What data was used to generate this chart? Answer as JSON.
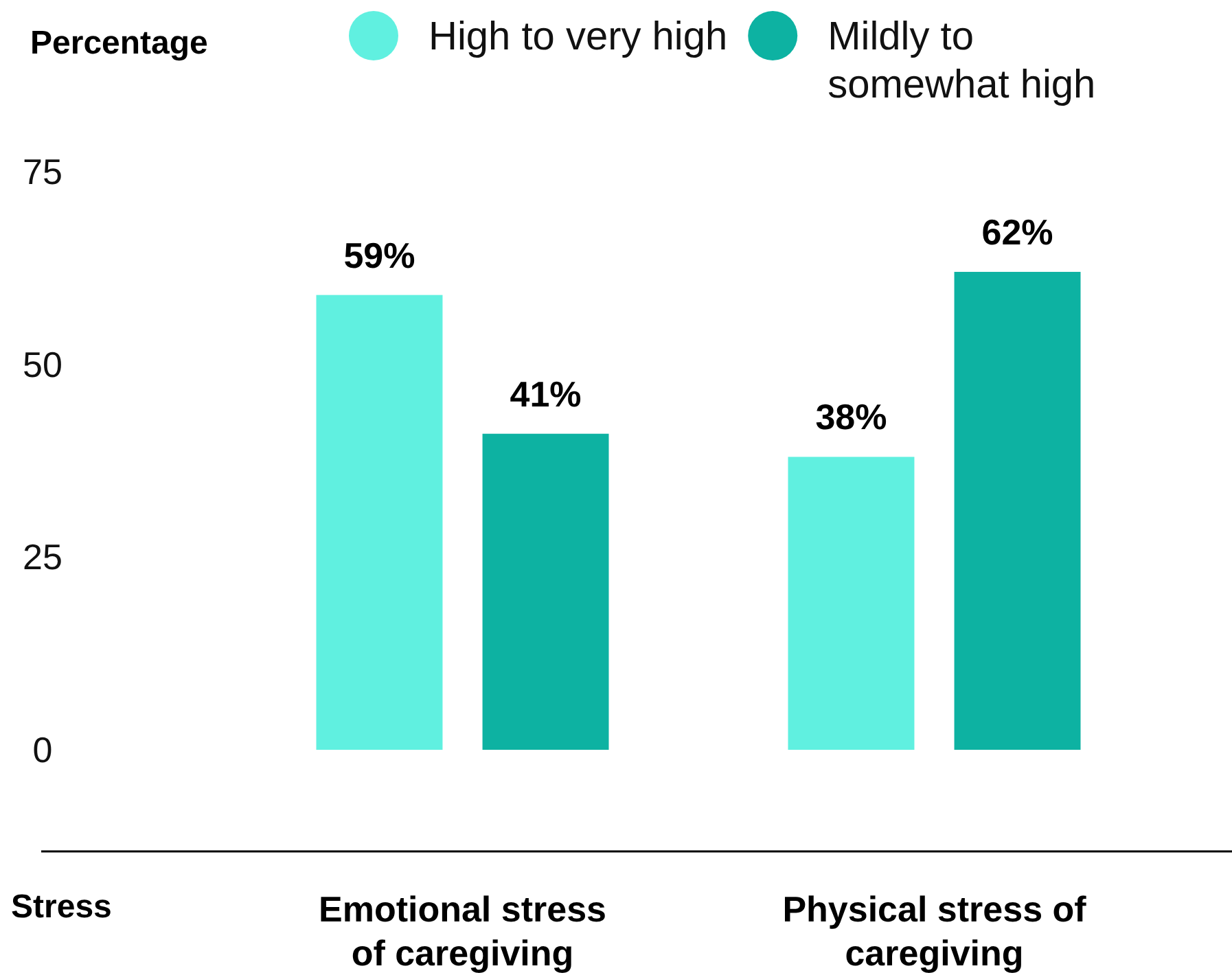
{
  "chart_data": {
    "type": "bar",
    "ylabel": "Percentage",
    "xlabel": "Stress",
    "legend": "top",
    "categories": [
      "Emotional stress of caregiving",
      "Physical stress of caregiving"
    ],
    "series": [
      {
        "name": "High to very high",
        "color": "#60f0e0",
        "values": [
          59,
          38
        ],
        "value_labels": [
          "59%",
          "38%"
        ]
      },
      {
        "name": "Mildly to somewhat high",
        "color": "#0db2a2",
        "values": [
          41,
          62
        ],
        "value_labels": [
          "41%",
          "62%"
        ]
      }
    ],
    "ylim": [
      0,
      75
    ],
    "yticks": [
      0,
      25,
      50,
      75
    ]
  }
}
